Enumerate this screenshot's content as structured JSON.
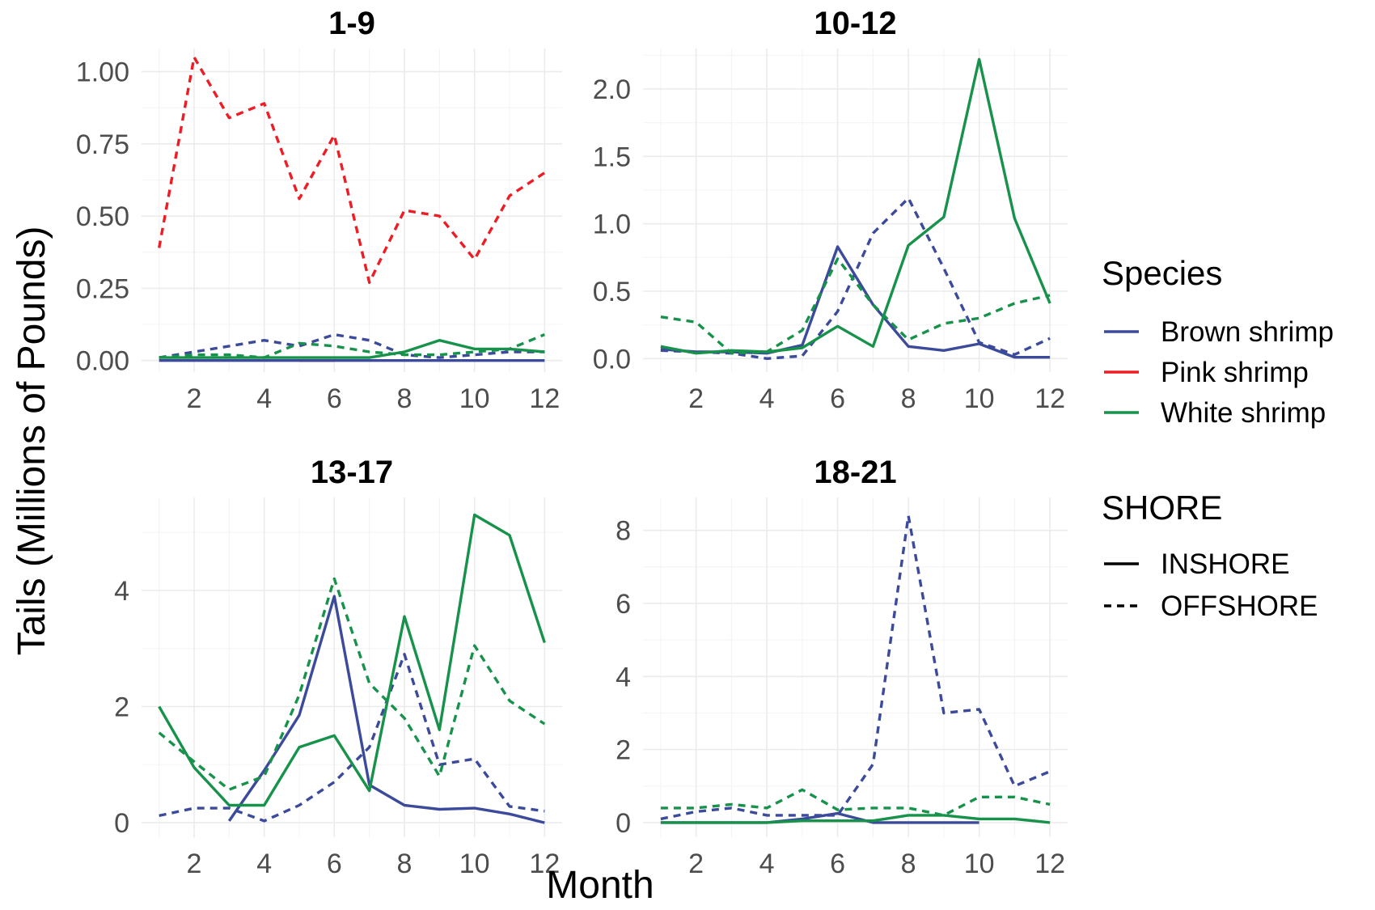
{
  "chart_data": {
    "type": "line",
    "xlabel": "Month",
    "ylabel": "Tails (Millions of Pounds)",
    "x": [
      1,
      2,
      3,
      4,
      5,
      6,
      7,
      8,
      9,
      10,
      11,
      12
    ],
    "legend": {
      "species_title": "Species",
      "species": [
        {
          "name": "Brown shrimp",
          "color": "#3b4a9a"
        },
        {
          "name": "Pink shrimp",
          "color": "#ee1c25"
        },
        {
          "name": "White shrimp",
          "color": "#17924a"
        }
      ],
      "shore_title": "SHORE",
      "shore": [
        {
          "name": "INSHORE",
          "dash": "solid"
        },
        {
          "name": "OFFSHORE",
          "dash": "dashed"
        }
      ],
      "position": "right"
    },
    "panels": [
      {
        "title": "1-9",
        "ylim": [
          -0.04,
          1.08
        ],
        "yticks": [
          0,
          0.25,
          0.5,
          0.75,
          1.0
        ],
        "ytick_labels": [
          "0.00",
          "0.25",
          "0.50",
          "0.75",
          "1.00"
        ],
        "xticks": [
          2,
          4,
          6,
          8,
          10,
          12
        ],
        "series": [
          {
            "species": "Pink shrimp",
            "shore": "OFFSHORE",
            "x": [
              1,
              2,
              3,
              4,
              5,
              6,
              7,
              8,
              9,
              10,
              11,
              12
            ],
            "values": [
              0.39,
              1.05,
              0.84,
              0.89,
              0.56,
              0.78,
              0.27,
              0.52,
              0.5,
              0.35,
              0.57,
              0.65
            ]
          },
          {
            "species": "Pink shrimp",
            "shore": "INSHORE",
            "x": [
              5,
              6
            ],
            "values": [
              0.0,
              0.0
            ]
          },
          {
            "species": "Brown shrimp",
            "shore": "OFFSHORE",
            "x": [
              1,
              2,
              3,
              4,
              5,
              6,
              7,
              8,
              9,
              10,
              11,
              12
            ],
            "values": [
              0.01,
              0.03,
              0.05,
              0.07,
              0.05,
              0.09,
              0.07,
              0.02,
              0.01,
              0.02,
              0.03,
              0.03
            ]
          },
          {
            "species": "Brown shrimp",
            "shore": "INSHORE",
            "x": [
              1,
              2,
              3,
              4,
              5,
              6,
              7,
              8,
              9,
              10,
              11,
              12
            ],
            "values": [
              0.0,
              0.0,
              0.0,
              0.0,
              0.0,
              0.0,
              0.0,
              0.0,
              0.0,
              0.0,
              0.0,
              0.0
            ]
          },
          {
            "species": "White shrimp",
            "shore": "OFFSHORE",
            "x": [
              1,
              2,
              3,
              4,
              5,
              6,
              7,
              8,
              9,
              10,
              11,
              12
            ],
            "values": [
              0.01,
              0.02,
              0.02,
              0.01,
              0.06,
              0.05,
              0.03,
              0.02,
              0.02,
              0.03,
              0.04,
              0.09
            ]
          },
          {
            "species": "White shrimp",
            "shore": "INSHORE",
            "x": [
              1,
              2,
              3,
              4,
              5,
              6,
              7,
              8,
              9,
              10,
              11,
              12
            ],
            "values": [
              0.01,
              0.01,
              0.01,
              0.01,
              0.01,
              0.01,
              0.01,
              0.03,
              0.07,
              0.04,
              0.04,
              0.03
            ]
          }
        ]
      },
      {
        "title": "10-12",
        "ylim": [
          -0.1,
          2.3
        ],
        "yticks": [
          0,
          0.5,
          1.0,
          1.5,
          2.0
        ],
        "ytick_labels": [
          "0.0",
          "0.5",
          "1.0",
          "1.5",
          "2.0"
        ],
        "xticks": [
          2,
          4,
          6,
          8,
          10,
          12
        ],
        "series": [
          {
            "species": "Brown shrimp",
            "shore": "OFFSHORE",
            "x": [
              1,
              2,
              3,
              4,
              5,
              6,
              7,
              8,
              9,
              10,
              11,
              12
            ],
            "values": [
              0.06,
              0.05,
              0.04,
              0.0,
              0.02,
              0.35,
              0.93,
              1.19,
              0.67,
              0.12,
              0.03,
              0.15
            ]
          },
          {
            "species": "Brown shrimp",
            "shore": "INSHORE",
            "x": [
              1,
              2,
              3,
              4,
              5,
              6,
              7,
              8,
              9,
              10,
              11,
              12
            ],
            "values": [
              0.07,
              0.05,
              0.05,
              0.04,
              0.1,
              0.83,
              0.4,
              0.09,
              0.06,
              0.11,
              0.01,
              0.01
            ]
          },
          {
            "species": "White shrimp",
            "shore": "OFFSHORE",
            "x": [
              1,
              2,
              3,
              4,
              5,
              6,
              7,
              8,
              9,
              10,
              11,
              12
            ],
            "values": [
              0.31,
              0.27,
              0.04,
              0.05,
              0.21,
              0.74,
              0.4,
              0.14,
              0.26,
              0.3,
              0.41,
              0.47
            ]
          },
          {
            "species": "White shrimp",
            "shore": "INSHORE",
            "x": [
              1,
              2,
              3,
              4,
              5,
              6,
              7,
              8,
              9,
              10,
              11,
              12
            ],
            "values": [
              0.09,
              0.04,
              0.06,
              0.05,
              0.08,
              0.24,
              0.09,
              0.84,
              1.05,
              2.22,
              1.04,
              0.41
            ]
          }
        ]
      },
      {
        "title": "13-17",
        "ylim": [
          -0.25,
          5.6
        ],
        "yticks": [
          0,
          2,
          4
        ],
        "ytick_labels": [
          "0",
          "2",
          "4"
        ],
        "xticks": [
          2,
          4,
          6,
          8,
          10,
          12
        ],
        "series": [
          {
            "species": "Brown shrimp",
            "shore": "OFFSHORE",
            "x": [
              1,
              2,
              3,
              4,
              5,
              6,
              7,
              8,
              9,
              10,
              11,
              12
            ],
            "values": [
              0.12,
              0.25,
              0.25,
              0.03,
              0.3,
              0.7,
              1.3,
              2.9,
              1.0,
              1.1,
              0.28,
              0.2
            ]
          },
          {
            "species": "Brown shrimp",
            "shore": "INSHORE",
            "x": [
              3,
              4,
              5,
              6,
              7,
              8,
              9,
              10,
              11,
              12
            ],
            "values": [
              0.03,
              0.9,
              1.85,
              3.9,
              0.65,
              0.3,
              0.23,
              0.25,
              0.15,
              0.0
            ]
          },
          {
            "species": "White shrimp",
            "shore": "OFFSHORE",
            "x": [
              1,
              2,
              3,
              4,
              5,
              6,
              7,
              8,
              9,
              10,
              11,
              12
            ],
            "values": [
              1.55,
              1.05,
              0.57,
              0.8,
              2.2,
              4.2,
              2.4,
              1.8,
              0.8,
              3.05,
              2.1,
              1.7
            ]
          },
          {
            "species": "White shrimp",
            "shore": "INSHORE",
            "x": [
              1,
              2,
              3,
              4,
              5,
              6,
              7,
              8,
              9,
              10,
              11,
              12
            ],
            "values": [
              2.0,
              0.95,
              0.3,
              0.3,
              1.3,
              1.5,
              0.55,
              3.55,
              1.6,
              5.3,
              4.95,
              3.1
            ]
          }
        ]
      },
      {
        "title": "18-21",
        "ylim": [
          -0.4,
          8.9
        ],
        "yticks": [
          0,
          2,
          4,
          6,
          8
        ],
        "ytick_labels": [
          "0",
          "2",
          "4",
          "6",
          "8"
        ],
        "xticks": [
          2,
          4,
          6,
          8,
          10,
          12
        ],
        "series": [
          {
            "species": "Brown shrimp",
            "shore": "OFFSHORE",
            "x": [
              1,
              2,
              3,
              4,
              5,
              6,
              7,
              8,
              9,
              10,
              11,
              12
            ],
            "values": [
              0.1,
              0.3,
              0.4,
              0.2,
              0.2,
              0.2,
              1.6,
              8.4,
              3.0,
              3.1,
              1.0,
              1.4
            ]
          },
          {
            "species": "Brown shrimp",
            "shore": "INSHORE",
            "x": [
              1,
              2,
              3,
              4,
              5,
              6,
              7,
              8,
              9,
              10
            ],
            "values": [
              0.0,
              0.0,
              0.0,
              0.0,
              0.1,
              0.25,
              0.0,
              0.0,
              0.0,
              0.0
            ]
          },
          {
            "species": "White shrimp",
            "shore": "OFFSHORE",
            "x": [
              1,
              2,
              3,
              4,
              5,
              6,
              7,
              8,
              9,
              10,
              11,
              12
            ],
            "values": [
              0.4,
              0.4,
              0.5,
              0.4,
              0.9,
              0.35,
              0.4,
              0.4,
              0.2,
              0.7,
              0.7,
              0.5
            ]
          },
          {
            "species": "White shrimp",
            "shore": "INSHORE",
            "x": [
              1,
              2,
              3,
              4,
              5,
              6,
              7,
              8,
              9,
              10,
              11,
              12
            ],
            "values": [
              0.0,
              0.0,
              0.0,
              0.0,
              0.05,
              0.05,
              0.05,
              0.2,
              0.2,
              0.1,
              0.1,
              0.0
            ]
          }
        ]
      }
    ]
  }
}
